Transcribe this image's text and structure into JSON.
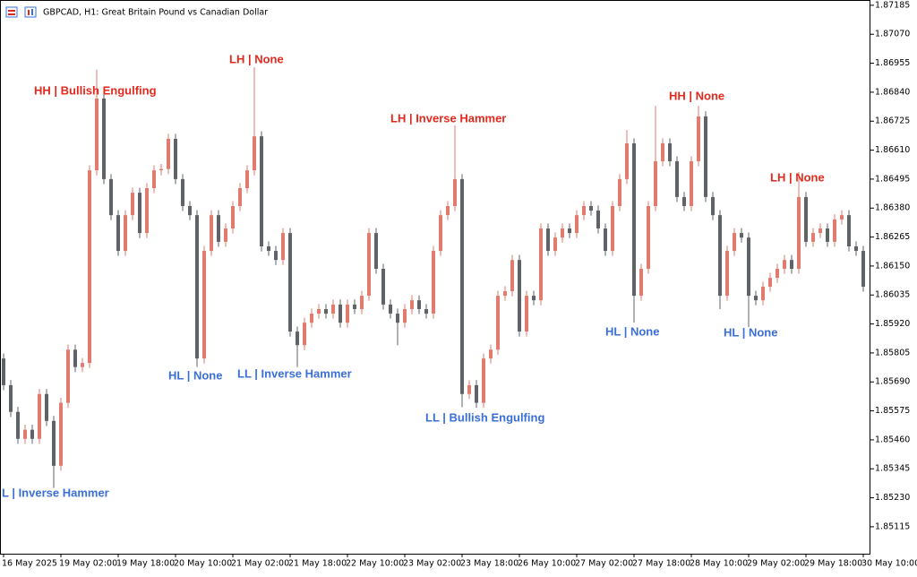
{
  "chart_data": {
    "type": "candlestick",
    "title": "GBPCAD, H1:  Great Britain Pound vs Canadian Dollar",
    "categories": [
      "16 May 2025",
      null,
      null,
      null,
      null,
      null,
      null,
      null,
      "19 May 02:00",
      null,
      null,
      null,
      null,
      null,
      null,
      null,
      "19 May 18:00",
      null,
      null,
      null,
      null,
      null,
      null,
      null,
      "20 May 10:00",
      null,
      null,
      null,
      null,
      null,
      null,
      null,
      "21 May 02:00",
      null,
      null,
      null,
      null,
      null,
      null,
      null,
      "21 May 18:00",
      null,
      null,
      null,
      null,
      null,
      null,
      null,
      "22 May 10:00",
      null,
      null,
      null,
      null,
      null,
      null,
      null,
      "23 May 02:00",
      null,
      null,
      null,
      null,
      null,
      null,
      null,
      "23 May 18:00",
      null,
      null,
      null,
      null,
      null,
      null,
      null,
      "26 May 10:00",
      null,
      null,
      null,
      null,
      null,
      null,
      null,
      "27 May 02:00",
      null,
      null,
      null,
      null,
      null,
      null,
      null,
      "27 May 18:00",
      null,
      null,
      null,
      null,
      null,
      null,
      null,
      "28 May 10:00",
      null,
      null,
      null,
      null,
      null,
      null,
      null,
      "29 May 02:00",
      null,
      null,
      null,
      null,
      null,
      null,
      null,
      "29 May 18:00",
      null,
      null,
      null,
      null,
      null,
      null,
      null,
      "30 May 10:00"
    ],
    "open": [
      1.85783,
      1.85677,
      1.85571,
      1.85464,
      1.855,
      1.85464,
      1.85642,
      1.85535,
      1.85357,
      1.85607,
      1.85818,
      1.85749,
      1.85765,
      1.8653,
      1.86815,
      1.86495,
      1.86352,
      1.8621,
      1.86352,
      1.86441,
      1.86281,
      1.86459,
      1.8653,
      1.86535,
      1.86655,
      1.86495,
      1.86388,
      1.86352,
      1.85783,
      1.8621,
      1.86352,
      1.86246,
      1.86299,
      1.86388,
      1.86459,
      1.8653,
      1.86665,
      1.86228,
      1.8621,
      1.86174,
      1.86281,
      1.8589,
      1.85836,
      1.85925,
      1.85961,
      1.85979,
      1.85961,
      1.85997,
      1.85925,
      1.85997,
      1.85979,
      1.86032,
      1.86281,
      1.86139,
      1.85997,
      1.85961,
      1.85925,
      1.85979,
      1.86014,
      1.85979,
      1.85961,
      1.8621,
      1.86352,
      1.86388,
      1.86495,
      1.85642,
      1.85677,
      1.85607,
      1.85783,
      1.85818,
      1.86032,
      1.8605,
      1.86174,
      1.8589,
      1.86032,
      1.86014,
      1.86299,
      1.8621,
      1.86263,
      1.86299,
      1.86281,
      1.86352,
      1.86388,
      1.8637,
      1.86299,
      1.8621,
      1.86388,
      1.86495,
      1.86637,
      1.86032,
      1.86139,
      1.86388,
      1.86566,
      1.86637,
      1.86566,
      1.86424,
      1.86388,
      1.86566,
      1.86744,
      1.86424,
      1.86352,
      1.86032,
      1.8621,
      1.86281,
      1.86263,
      1.86032,
      1.86014,
      1.86068,
      1.86103,
      1.86139,
      1.86174,
      1.86139,
      1.86424,
      1.86246,
      1.86281,
      1.86299,
      1.86246,
      1.86335,
      1.86352,
      1.86228,
      1.8621
    ],
    "high": [
      1.85803,
      1.85697,
      1.85591,
      1.8552,
      1.8552,
      1.85662,
      1.85662,
      1.85555,
      1.85627,
      1.85838,
      1.85838,
      1.85785,
      1.8655,
      1.86929,
      1.86835,
      1.86515,
      1.86372,
      1.86372,
      1.86461,
      1.86461,
      1.86479,
      1.8655,
      1.86555,
      1.86675,
      1.86675,
      1.86515,
      1.86408,
      1.86372,
      1.8623,
      1.86372,
      1.86372,
      1.86319,
      1.86408,
      1.86479,
      1.8655,
      1.86939,
      1.86685,
      1.86248,
      1.8623,
      1.86301,
      1.86301,
      1.8591,
      1.85945,
      1.85981,
      1.85999,
      1.85999,
      1.86017,
      1.86017,
      1.86017,
      1.86017,
      1.86052,
      1.86301,
      1.86301,
      1.86159,
      1.86017,
      1.85981,
      1.85999,
      1.86034,
      1.86034,
      1.85999,
      1.8623,
      1.86372,
      1.86408,
      1.86708,
      1.86515,
      1.85697,
      1.85697,
      1.85803,
      1.85838,
      1.86052,
      1.8607,
      1.86194,
      1.86194,
      1.86052,
      1.86052,
      1.86319,
      1.86319,
      1.86283,
      1.86319,
      1.86319,
      1.86372,
      1.86408,
      1.86408,
      1.8639,
      1.86319,
      1.86408,
      1.86515,
      1.8669,
      1.86657,
      1.86159,
      1.86408,
      1.86786,
      1.86657,
      1.86657,
      1.86586,
      1.86444,
      1.86586,
      1.86786,
      1.86764,
      1.86444,
      1.86372,
      1.8623,
      1.86301,
      1.86301,
      1.86283,
      1.86052,
      1.86088,
      1.86123,
      1.86159,
      1.86194,
      1.86194,
      1.86523,
      1.86444,
      1.86301,
      1.86319,
      1.86319,
      1.86355,
      1.86372,
      1.86372,
      1.86248,
      1.8623
    ],
    "low": [
      1.85657,
      1.85551,
      1.85444,
      1.85444,
      1.85444,
      1.85444,
      1.85515,
      1.85269,
      1.85337,
      1.85587,
      1.85729,
      1.85729,
      1.85745,
      1.8651,
      1.86475,
      1.86332,
      1.8619,
      1.8619,
      1.86332,
      1.86261,
      1.86261,
      1.86439,
      1.8651,
      1.86515,
      1.86475,
      1.86368,
      1.86332,
      1.85749,
      1.85763,
      1.8619,
      1.86226,
      1.86226,
      1.86279,
      1.86368,
      1.86439,
      1.8651,
      1.86208,
      1.8619,
      1.86154,
      1.86154,
      1.8587,
      1.85749,
      1.85816,
      1.85905,
      1.85941,
      1.85941,
      1.85941,
      1.85905,
      1.85905,
      1.85959,
      1.85959,
      1.86012,
      1.86119,
      1.85977,
      1.85941,
      1.85836,
      1.85905,
      1.85959,
      1.85959,
      1.85941,
      1.85941,
      1.8619,
      1.86332,
      1.86368,
      1.8559,
      1.85622,
      1.85587,
      1.85587,
      1.85763,
      1.85798,
      1.86012,
      1.8603,
      1.8587,
      1.8587,
      1.85994,
      1.85994,
      1.8619,
      1.8619,
      1.86243,
      1.86261,
      1.86261,
      1.86332,
      1.8635,
      1.86279,
      1.8619,
      1.8619,
      1.86368,
      1.86475,
      1.85925,
      1.86012,
      1.86119,
      1.86368,
      1.86546,
      1.86546,
      1.86404,
      1.86368,
      1.86368,
      1.86546,
      1.86404,
      1.86332,
      1.85979,
      1.86012,
      1.8619,
      1.86243,
      1.85908,
      1.85994,
      1.85994,
      1.86048,
      1.86083,
      1.86119,
      1.86119,
      1.86119,
      1.86226,
      1.86226,
      1.86261,
      1.86226,
      1.86226,
      1.86315,
      1.86208,
      1.8619,
      1.86048
    ],
    "close": [
      1.85677,
      1.85571,
      1.85464,
      1.855,
      1.85464,
      1.85642,
      1.85535,
      1.85357,
      1.85607,
      1.85818,
      1.85749,
      1.85765,
      1.8653,
      1.86815,
      1.86495,
      1.86352,
      1.8621,
      1.86352,
      1.86441,
      1.86281,
      1.86459,
      1.8653,
      1.86535,
      1.86655,
      1.86495,
      1.86388,
      1.86352,
      1.85783,
      1.8621,
      1.86352,
      1.86246,
      1.86299,
      1.86388,
      1.86459,
      1.8653,
      1.86665,
      1.86228,
      1.8621,
      1.86174,
      1.86281,
      1.8589,
      1.85836,
      1.85925,
      1.85961,
      1.85979,
      1.85961,
      1.85997,
      1.85925,
      1.85997,
      1.85979,
      1.86032,
      1.86281,
      1.86139,
      1.85997,
      1.85961,
      1.85925,
      1.85979,
      1.86014,
      1.85979,
      1.85961,
      1.8621,
      1.86352,
      1.86388,
      1.86495,
      1.85642,
      1.85677,
      1.85607,
      1.85783,
      1.85818,
      1.86032,
      1.8605,
      1.86174,
      1.8589,
      1.86032,
      1.86014,
      1.86299,
      1.8621,
      1.86263,
      1.86299,
      1.86281,
      1.86352,
      1.86388,
      1.8637,
      1.86299,
      1.8621,
      1.86388,
      1.86495,
      1.86637,
      1.86032,
      1.86139,
      1.86388,
      1.86566,
      1.86637,
      1.86566,
      1.86424,
      1.86388,
      1.86566,
      1.86744,
      1.86424,
      1.86352,
      1.86032,
      1.8621,
      1.86281,
      1.86263,
      1.86032,
      1.86014,
      1.86068,
      1.86103,
      1.86139,
      1.86174,
      1.86139,
      1.86424,
      1.86246,
      1.86281,
      1.86299,
      1.86246,
      1.86335,
      1.86352,
      1.86228,
      1.8621,
      1.86068
    ],
    "up_color": "#e07b6e",
    "down_color": "#5f6368",
    "ylim": [
      1.85008,
      1.87206
    ],
    "yticks": [
      1.87185,
      {
        "value": 1.8707,
        "label": "1.87070"
      },
      1.86955,
      {
        "value": 1.8684,
        "label": "1.86840"
      },
      1.86725,
      {
        "value": 1.8661,
        "label": "1.86610"
      },
      1.86495,
      {
        "value": 1.8638,
        "label": "1.86380"
      },
      1.86265,
      {
        "value": 1.8615,
        "label": "1.86150"
      },
      1.86035,
      {
        "value": 1.8592,
        "label": "1.85920"
      },
      1.85805,
      {
        "value": 1.8569,
        "label": "1.85690"
      },
      1.85575,
      {
        "value": 1.8546,
        "label": "1.85460"
      },
      1.85345,
      {
        "value": 1.8523,
        "label": "1.85230"
      },
      1.85115
    ],
    "annotations_high": [
      "HH | Bullish Engulfing",
      "LH | None",
      "LH | Inverse Hammer",
      "HH | None",
      "LH | None"
    ],
    "annotations_low": [
      "L | Inverse Hammer",
      "HL | None",
      "LL | Inverse Hammer",
      "LL | Bullish Engulfing",
      "HL | None",
      "HL | None"
    ],
    "high_color": "#e3291e",
    "low_color": "#3a6fd8"
  }
}
